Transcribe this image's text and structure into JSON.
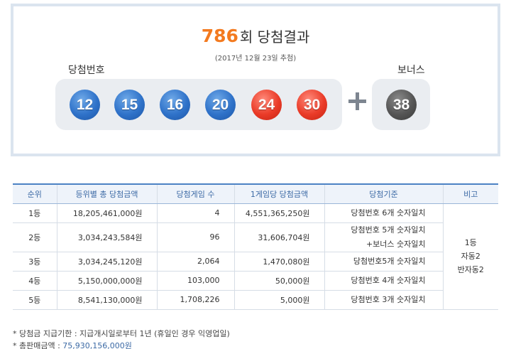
{
  "header": {
    "round_number": "786",
    "round_suffix": "회 당첨결과",
    "draw_date": "(2017년 12월 23일 추첨)",
    "winning_label": "당첨번호",
    "bonus_label": "보너스"
  },
  "winning_numbers": [
    {
      "value": "12",
      "color": "#2f72c9"
    },
    {
      "value": "15",
      "color": "#2f72c9"
    },
    {
      "value": "16",
      "color": "#2f72c9"
    },
    {
      "value": "20",
      "color": "#2f72c9"
    },
    {
      "value": "24",
      "color": "#ea3b28"
    },
    {
      "value": "30",
      "color": "#ea3b28"
    }
  ],
  "bonus_number": {
    "value": "38",
    "color": "#555555"
  },
  "table": {
    "headers": [
      "순위",
      "등위별 총 당첨금액",
      "당첨게임 수",
      "1게임당 당첨금액",
      "당첨기준",
      "비고"
    ],
    "rows": [
      {
        "rank": "1등",
        "total": "18,205,461,000원",
        "games": "4",
        "per_game": "4,551,365,250원",
        "criteria": [
          "당첨번호 6개 숫자일치"
        ]
      },
      {
        "rank": "2등",
        "total": "3,034,243,584원",
        "games": "96",
        "per_game": "31,606,704원",
        "criteria": [
          "당첨번호 5개 숫자일치",
          "+보너스 숫자일치"
        ]
      },
      {
        "rank": "3등",
        "total": "3,034,245,120원",
        "games": "2,064",
        "per_game": "1,470,080원",
        "criteria": [
          "당첨번호5개 숫자일치"
        ]
      },
      {
        "rank": "4등",
        "total": "5,150,000,000원",
        "games": "103,000",
        "per_game": "50,000원",
        "criteria": [
          "당첨번호 4개 숫자일치"
        ]
      },
      {
        "rank": "5등",
        "total": "8,541,130,000원",
        "games": "1,708,226",
        "per_game": "5,000원",
        "criteria": [
          "당첨번호 3개 숫자일치"
        ]
      }
    ],
    "note": [
      "1등",
      "자동2",
      "반자동2"
    ]
  },
  "footnotes": {
    "payment_period": "* 당첨금 지급기한 : 지급개시일로부터 1년 (휴일인 경우 익영업일)",
    "total_sales_label": "* 총판매금액 : ",
    "total_sales_value": "75,930,156,000원"
  },
  "colors": {
    "accent_orange": "#f37a1f",
    "table_header_text": "#3c6aa5",
    "table_header_border": "#4c82c4",
    "box_border": "#dbe4ef",
    "panel_bg": "#eaedf1"
  }
}
